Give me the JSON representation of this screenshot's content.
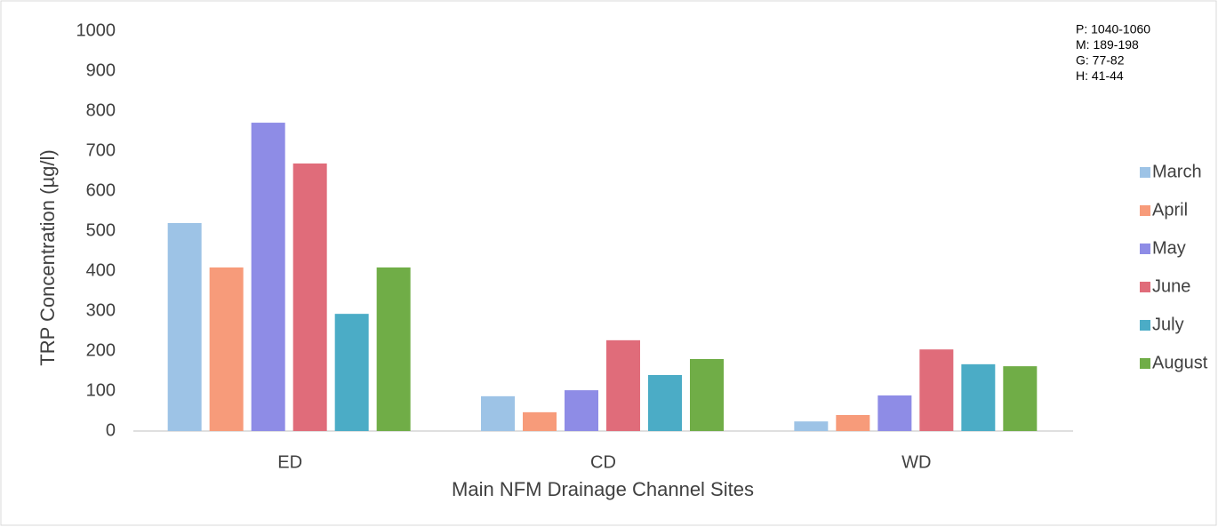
{
  "chart_data": {
    "type": "bar",
    "y_label": "TRP Concentration (µg/l)",
    "x_label": "Main NFM Drainage Channel Sites",
    "annotation": [
      "P: 1040-1060",
      "M: 189-198",
      "G: 77-82",
      "H: 41-44"
    ],
    "categories": [
      "ED",
      "CD",
      "WD"
    ],
    "series": [
      {
        "name": "March",
        "color": "#9dc3e6",
        "values": [
          520,
          87,
          24
        ]
      },
      {
        "name": "April",
        "color": "#f79b7a",
        "values": [
          409,
          47,
          40
        ]
      },
      {
        "name": "May",
        "color": "#8e8ce6",
        "values": [
          771,
          102,
          89
        ]
      },
      {
        "name": "June",
        "color": "#e06c7a",
        "values": [
          669,
          227,
          204
        ]
      },
      {
        "name": "July",
        "color": "#4bacc6",
        "values": [
          293,
          140,
          167
        ]
      },
      {
        "name": "August",
        "color": "#70ad47",
        "values": [
          409,
          180,
          162
        ]
      }
    ],
    "ylim": [
      0,
      1000
    ],
    "yticks": [
      0,
      100,
      200,
      300,
      400,
      500,
      600,
      700,
      800,
      900,
      1000
    ],
    "grid": false,
    "legend": "right"
  }
}
